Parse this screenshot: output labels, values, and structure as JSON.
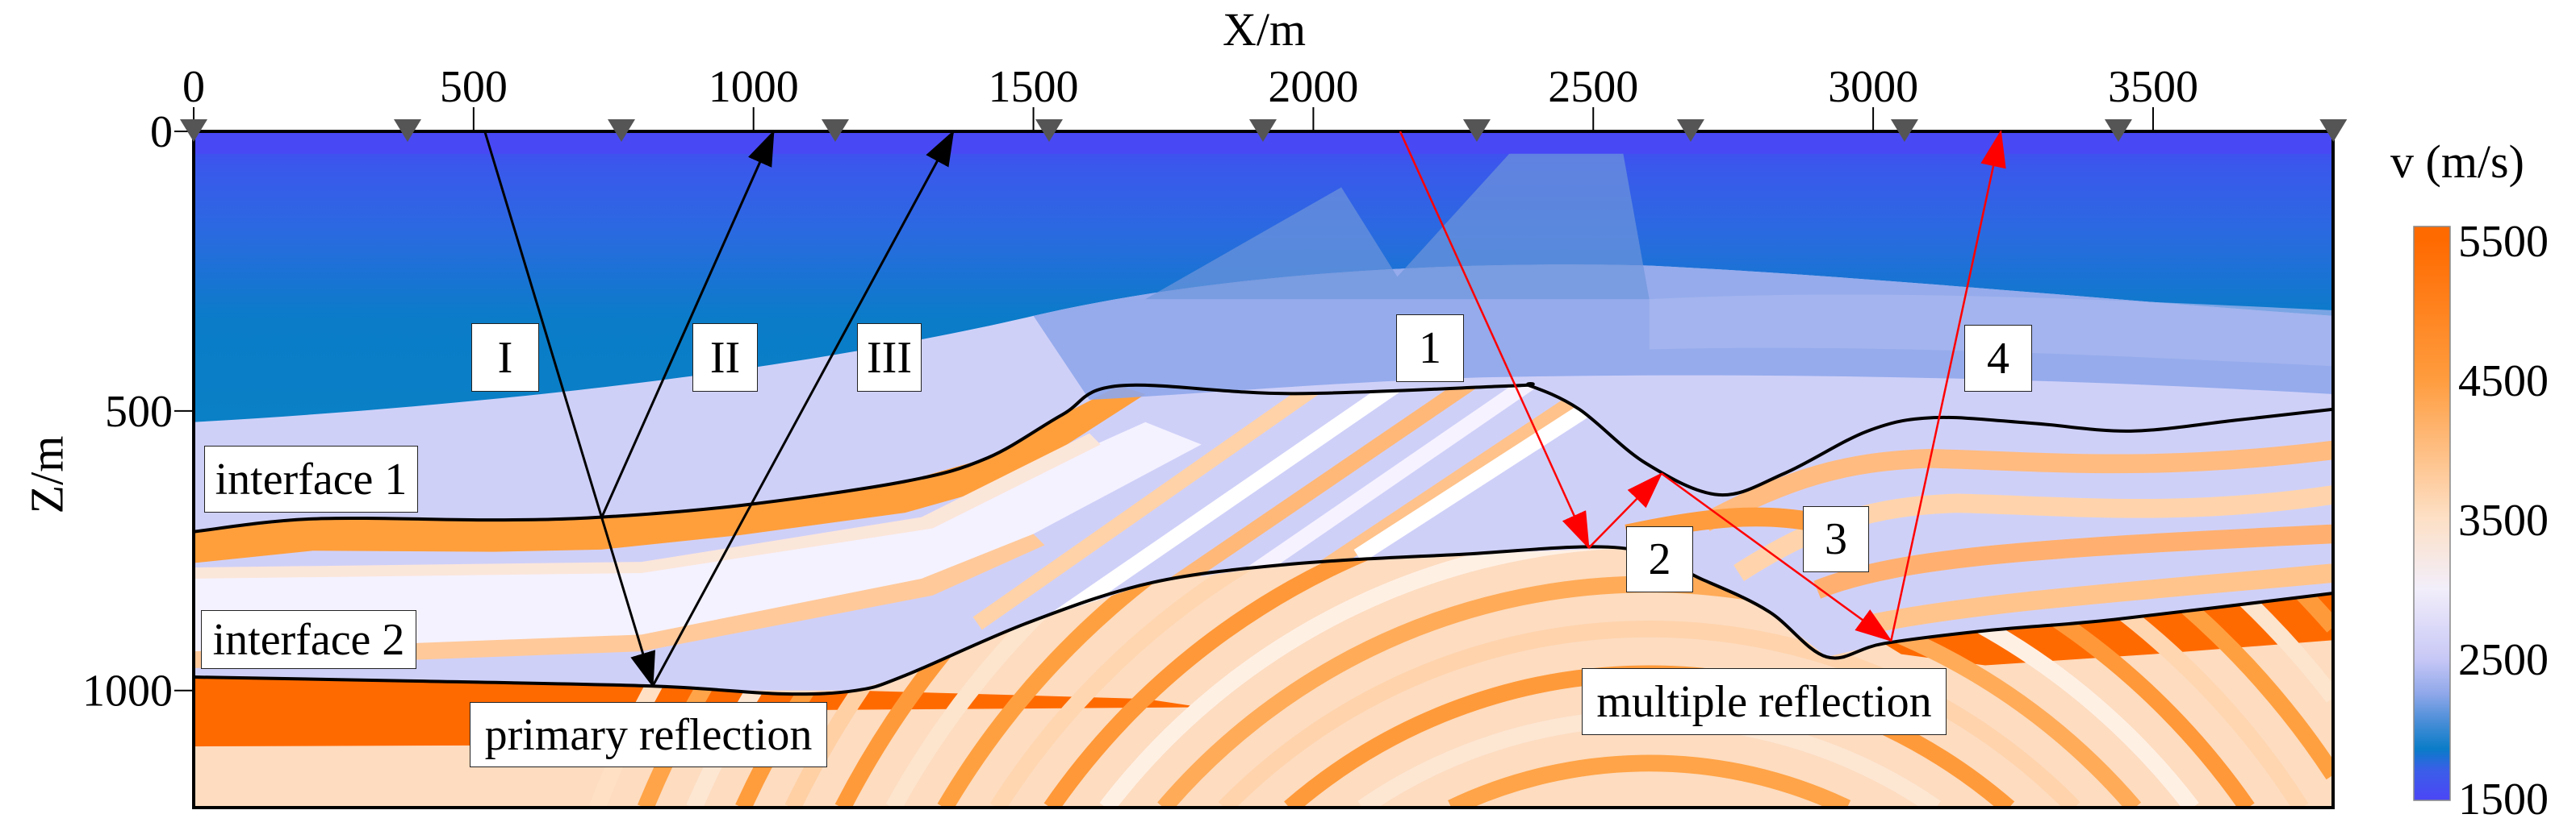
{
  "axes": {
    "x_label": "X/m",
    "z_label": "Z/m",
    "x_ticks": [
      0,
      500,
      1000,
      1500,
      2000,
      2500,
      3000,
      3500
    ],
    "z_ticks": [
      0,
      500,
      1000
    ],
    "x_range": [
      0,
      3822
    ],
    "z_range": [
      0,
      1210
    ]
  },
  "colorbar": {
    "title": "v (m/s)",
    "ticks": [
      5500,
      4500,
      3500,
      2500,
      1500
    ],
    "range": [
      1500,
      5500
    ],
    "stops": [
      {
        "v": 1500,
        "color": "#4a48f5"
      },
      {
        "v": 1700,
        "color": "#3a5ee8"
      },
      {
        "v": 1850,
        "color": "#0a7cc8"
      },
      {
        "v": 2050,
        "color": "#4a8ed8"
      },
      {
        "v": 2250,
        "color": "#90a8ea"
      },
      {
        "v": 2500,
        "color": "#c8c8f6"
      },
      {
        "v": 3000,
        "color": "#f2eefa"
      },
      {
        "v": 3500,
        "color": "#fde0c6"
      },
      {
        "v": 4500,
        "color": "#ff9c3e"
      },
      {
        "v": 5500,
        "color": "#ff6a00"
      }
    ]
  },
  "receivers_x": [
    0,
    382,
    764,
    1146,
    1528,
    1910,
    2292,
    2674,
    3056,
    3438,
    3822
  ],
  "interfaces": [
    {
      "name": "interface 1",
      "points": [
        [
          0,
          716
        ],
        [
          213,
          693
        ],
        [
          536,
          695
        ],
        [
          728,
          690
        ],
        [
          977,
          669
        ],
        [
          1271,
          626
        ],
        [
          1418,
          584
        ],
        [
          1551,
          507
        ],
        [
          1653,
          455
        ],
        [
          1960,
          469
        ],
        [
          2357,
          455
        ],
        [
          2387,
          455
        ],
        [
          2475,
          497
        ],
        [
          2593,
          593
        ],
        [
          2724,
          650
        ],
        [
          2843,
          611
        ],
        [
          2990,
          536
        ],
        [
          3108,
          512
        ],
        [
          3284,
          522
        ],
        [
          3460,
          536
        ],
        [
          3652,
          516
        ],
        [
          3822,
          497
        ]
      ]
    },
    {
      "name": "interface 2",
      "points": [
        [
          0,
          976
        ],
        [
          389,
          983
        ],
        [
          816,
          992
        ],
        [
          1051,
          1006
        ],
        [
          1183,
          1000
        ],
        [
          1271,
          973
        ],
        [
          1492,
          878
        ],
        [
          1712,
          807
        ],
        [
          1960,
          774
        ],
        [
          2255,
          757
        ],
        [
          2549,
          745
        ],
        [
          2696,
          802
        ],
        [
          2814,
          859
        ],
        [
          2917,
          940
        ],
        [
          3019,
          916
        ],
        [
          3211,
          892
        ],
        [
          3431,
          873
        ],
        [
          3822,
          826
        ]
      ]
    }
  ],
  "rays": [
    {
      "label": "I",
      "color": "#000000",
      "points": [
        [
          520,
          0
        ],
        [
          820,
          992
        ]
      ]
    },
    {
      "label": "II",
      "color": "#000000",
      "points": [
        [
          729,
          690
        ],
        [
          1036,
          0
        ]
      ]
    },
    {
      "label": "III",
      "color": "#000000",
      "points": [
        [
          820,
          992
        ],
        [
          1357,
          0
        ]
      ]
    },
    {
      "label": "multiple",
      "color": "#ff0000",
      "points": [
        [
          2155,
          0
        ],
        [
          2492,
          745
        ],
        [
          2622,
          612
        ],
        [
          3032,
          911
        ],
        [
          3228,
          0
        ]
      ]
    }
  ],
  "labels": {
    "ray_1": "I",
    "ray_2": "II",
    "ray_3": "III",
    "interface_1": "interface 1",
    "interface_2": "interface 2",
    "primary": "primary reflection",
    "multiple": "multiple reflection",
    "seg_1": "1",
    "seg_2": "2",
    "seg_3": "3",
    "seg_4": "4"
  }
}
